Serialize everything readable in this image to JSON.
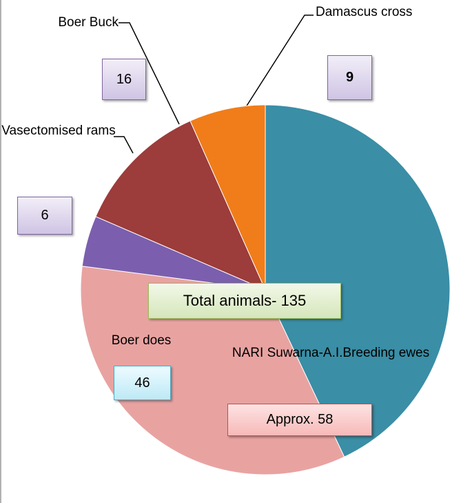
{
  "chart_data": {
    "type": "pie",
    "categories": [
      "NARI Suwarna-A.I.Breeding ewes",
      "Boer does",
      "Vasectomised rams",
      "Boer Buck",
      "Damascus cross"
    ],
    "values": [
      58,
      46,
      6,
      16,
      9
    ],
    "value_labels": [
      "Approx. 58",
      "46",
      "6",
      "16",
      "9"
    ],
    "colors": [
      "#3a8ea5",
      "#e8a3a1",
      "#7b5fae",
      "#9c3c3b",
      "#f07d1a"
    ],
    "annotation": "Total animals- 135"
  }
}
